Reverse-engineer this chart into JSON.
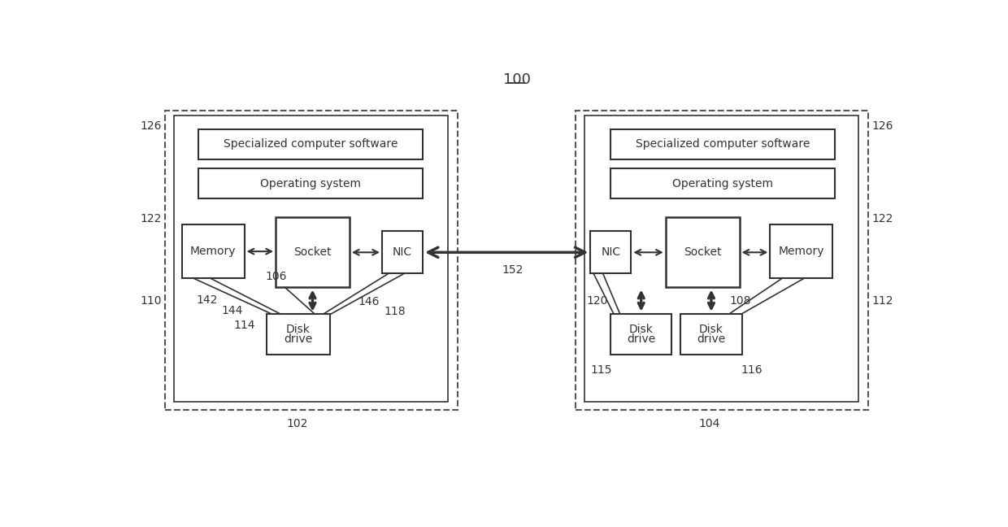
{
  "title": "100",
  "bg_color": "#ffffff",
  "line_color": "#333333",
  "dash_color": "#555555",
  "font_size": 10,
  "title_font_size": 13,
  "labels": {
    "node1": "102",
    "node2": "104",
    "conn": "152",
    "l126_left": "126",
    "l122_left": "122",
    "l110": "110",
    "l142": "142",
    "l144": "144",
    "l106": "106",
    "l114": "114",
    "l146": "146",
    "l118": "118",
    "l126_right": "126",
    "l122_right": "122",
    "l112": "112",
    "l120": "120",
    "l108": "108",
    "l115": "115",
    "l116": "116"
  }
}
